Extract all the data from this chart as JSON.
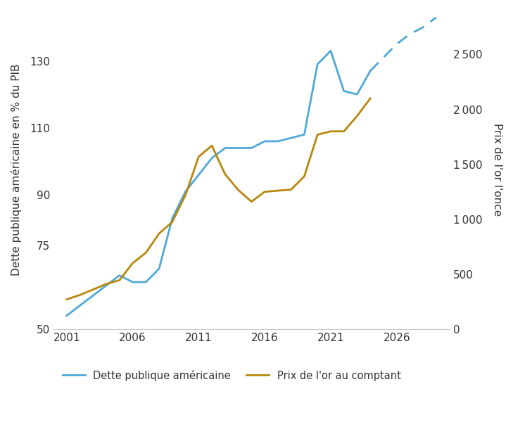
{
  "ylabel_left": "Dette publique américaine en % du PIB",
  "ylabel_right": "Prix de l'or l'once",
  "ylim_left": [
    50,
    145
  ],
  "ylim_right": [
    0,
    2900
  ],
  "yticks_left": [
    50,
    75,
    90,
    110,
    130
  ],
  "yticks_right": [
    0,
    500,
    1000,
    1500,
    2000,
    2500
  ],
  "xticks": [
    2001,
    2006,
    2011,
    2016,
    2021,
    2026
  ],
  "xlim": [
    2000,
    2030
  ],
  "debt_solid_x": [
    2001,
    2002,
    2003,
    2004,
    2005,
    2006,
    2007,
    2008,
    2009,
    2010,
    2011,
    2012,
    2013,
    2014,
    2015,
    2016,
    2017,
    2018,
    2019,
    2020,
    2021,
    2022,
    2023,
    2024
  ],
  "debt_solid_y": [
    54,
    57,
    60,
    63,
    66,
    64,
    64,
    68,
    83,
    91,
    96,
    101,
    104,
    104,
    104,
    106,
    106,
    107,
    108,
    129,
    133,
    121,
    120,
    127
  ],
  "debt_dashed_x": [
    2024,
    2025,
    2026,
    2027,
    2028,
    2029
  ],
  "debt_dashed_y": [
    127,
    131,
    135,
    138,
    140,
    143
  ],
  "gold_x": [
    2001,
    2002,
    2003,
    2004,
    2005,
    2006,
    2007,
    2008,
    2009,
    2010,
    2011,
    2012,
    2013,
    2014,
    2015,
    2016,
    2017,
    2018,
    2019,
    2020,
    2021,
    2022,
    2023,
    2024
  ],
  "gold_y": [
    270,
    310,
    360,
    410,
    445,
    600,
    695,
    870,
    975,
    1220,
    1570,
    1670,
    1410,
    1266,
    1160,
    1250,
    1260,
    1270,
    1390,
    1770,
    1800,
    1800,
    1940,
    2100
  ],
  "debt_color": "#4fa8d8",
  "gold_color": "#b8860b",
  "legend_label_debt": "Dette publique américaine",
  "legend_label_gold": "Prix de l'or au comptant",
  "background_color": "#ffffff",
  "font_color": "#333333"
}
